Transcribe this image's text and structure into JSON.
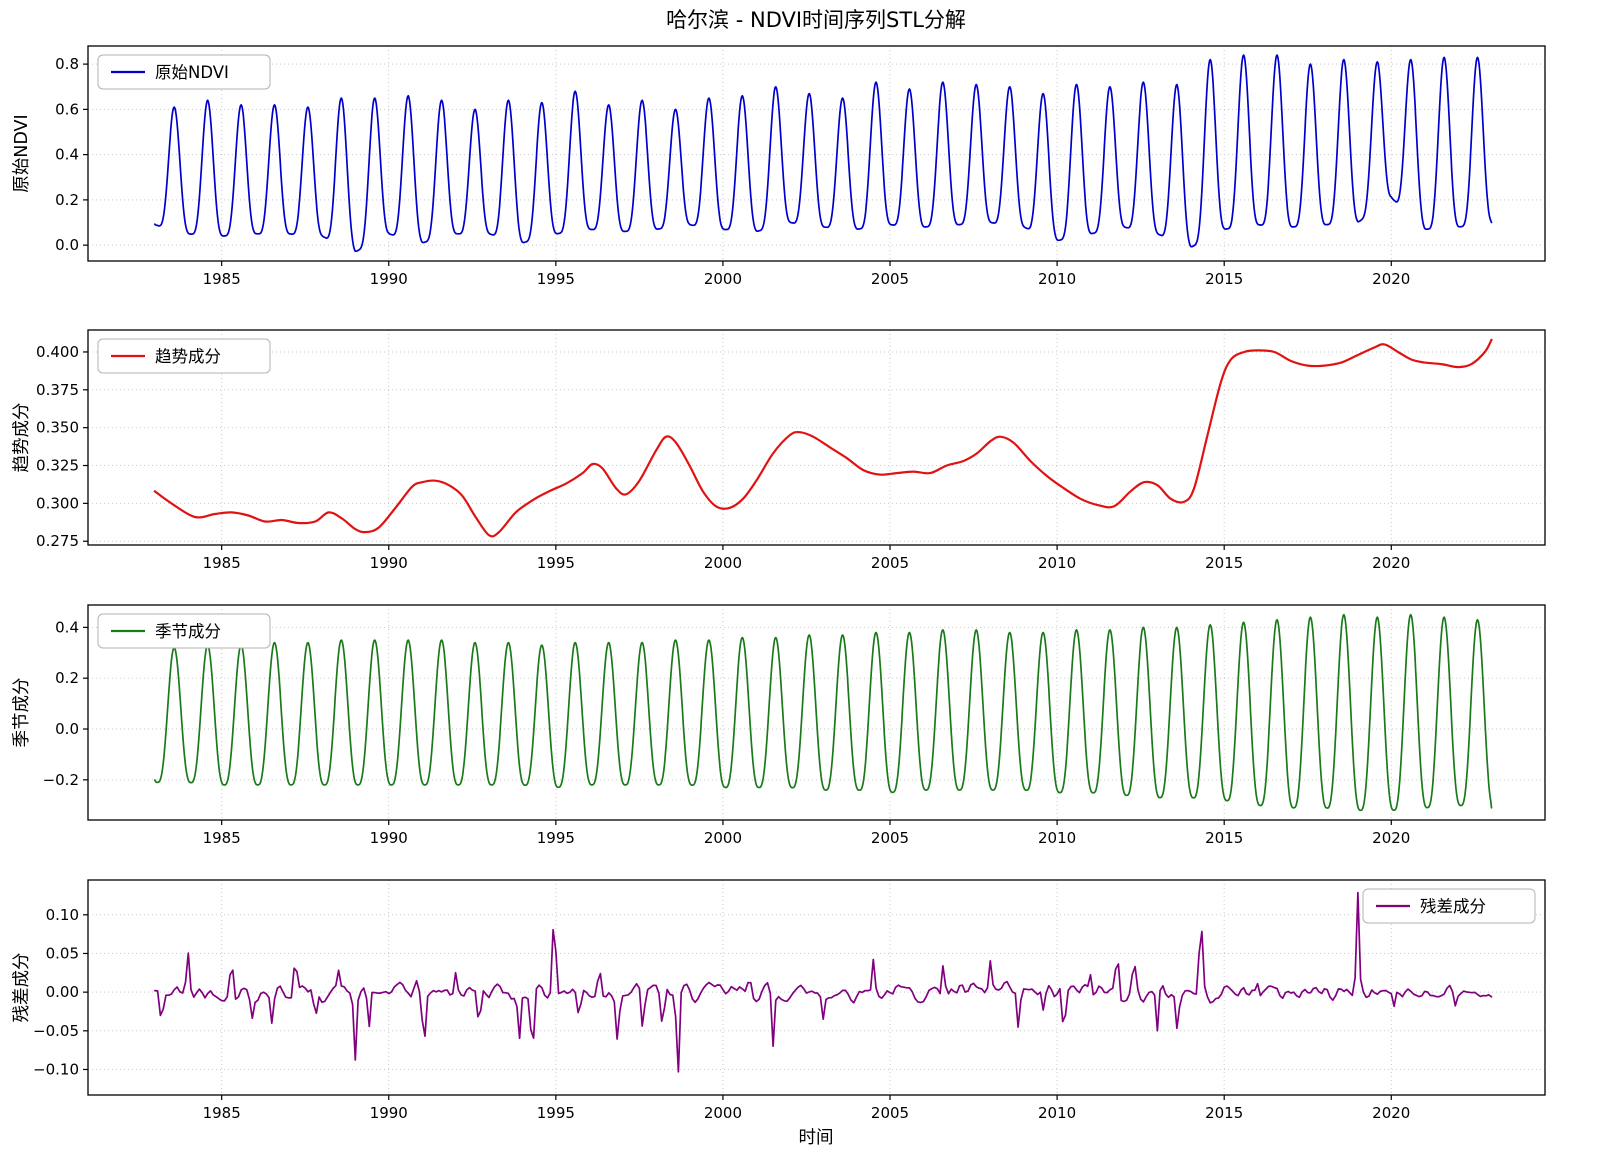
{
  "title": "哈尔滨 - NDVI时间序列STL分解",
  "xlabel": "时间",
  "x_ticks": [
    1985,
    1990,
    1995,
    2000,
    2005,
    2010,
    2015,
    2020
  ],
  "x_range": [
    1981.0,
    2024.6
  ],
  "chart_data": [
    {
      "type": "line",
      "name": "original",
      "legend": "原始NDVI",
      "ylabel": "原始NDVI",
      "color": "#0000cd",
      "legend_pos": "top-left",
      "ylim": [
        -0.07,
        0.88
      ],
      "yticks": [
        0.0,
        0.2,
        0.4,
        0.6,
        0.8
      ],
      "ytick_format": 1,
      "synthesis": {
        "kind": "seasonal",
        "years_start": 1983,
        "phase_trough": 0.08,
        "phase_peak": 0.58,
        "sharpness": 1.9,
        "peaks": [
          0.61,
          0.64,
          0.62,
          0.62,
          0.61,
          0.65,
          0.65,
          0.66,
          0.64,
          0.6,
          0.64,
          0.63,
          0.68,
          0.62,
          0.64,
          0.6,
          0.65,
          0.66,
          0.7,
          0.67,
          0.65,
          0.72,
          0.69,
          0.72,
          0.71,
          0.7,
          0.67,
          0.71,
          0.7,
          0.72,
          0.71,
          0.82,
          0.84,
          0.84,
          0.8,
          0.82,
          0.81,
          0.82,
          0.83,
          0.83
        ],
        "troughs": [
          0.09,
          0.05,
          0.04,
          0.05,
          0.05,
          0.04,
          -0.03,
          0.05,
          0.01,
          0.05,
          0.05,
          0.01,
          0.05,
          0.07,
          0.06,
          0.07,
          0.09,
          0.07,
          0.06,
          0.1,
          0.08,
          0.07,
          0.09,
          0.08,
          0.09,
          0.1,
          0.08,
          0.02,
          0.05,
          0.08,
          0.05,
          -0.01,
          0.07,
          0.09,
          0.08,
          0.09,
          0.1,
          0.21,
          0.07,
          0.08,
          0.1
        ]
      }
    },
    {
      "type": "line",
      "name": "trend",
      "legend": "趋势成分",
      "ylabel": "趋势成分",
      "color": "#e01212",
      "legend_pos": "top-left",
      "ylim": [
        0.2725,
        0.4145
      ],
      "yticks": [
        0.275,
        0.3,
        0.325,
        0.35,
        0.375,
        0.4
      ],
      "ytick_format": 3,
      "points": {
        "x": [
          1983.0,
          1983.5,
          1984.2,
          1984.8,
          1985.3,
          1985.8,
          1986.3,
          1986.8,
          1987.3,
          1987.8,
          1988.2,
          1988.6,
          1989.0,
          1989.3,
          1989.7,
          1990.2,
          1990.7,
          1991.0,
          1991.4,
          1991.8,
          1992.2,
          1992.6,
          1993.0,
          1993.3,
          1993.8,
          1994.3,
          1994.8,
          1995.3,
          1995.8,
          1996.1,
          1996.4,
          1996.8,
          1997.1,
          1997.5,
          1998.0,
          1998.3,
          1998.6,
          1999.0,
          1999.4,
          1999.8,
          2000.2,
          2000.6,
          2001.0,
          2001.5,
          2002.0,
          2002.3,
          2002.7,
          2003.2,
          2003.7,
          2004.2,
          2004.7,
          2005.2,
          2005.7,
          2006.2,
          2006.7,
          2007.2,
          2007.6,
          2008.0,
          2008.3,
          2008.7,
          2009.2,
          2009.7,
          2010.2,
          2010.7,
          2011.2,
          2011.7,
          2012.2,
          2012.6,
          2013.0,
          2013.4,
          2013.8,
          2014.1,
          2014.5,
          2014.9,
          2015.2,
          2015.6,
          2016.0,
          2016.5,
          2017.0,
          2017.5,
          2018.0,
          2018.5,
          2019.0,
          2019.5,
          2019.8,
          2020.2,
          2020.6,
          2021.0,
          2021.5,
          2022.0,
          2022.4,
          2022.8,
          2023.0
        ],
        "y": [
          0.308,
          0.3,
          0.291,
          0.293,
          0.294,
          0.292,
          0.288,
          0.289,
          0.287,
          0.288,
          0.294,
          0.29,
          0.283,
          0.281,
          0.284,
          0.297,
          0.311,
          0.314,
          0.315,
          0.312,
          0.305,
          0.291,
          0.279,
          0.281,
          0.294,
          0.302,
          0.308,
          0.313,
          0.32,
          0.326,
          0.323,
          0.31,
          0.306,
          0.315,
          0.335,
          0.344,
          0.34,
          0.325,
          0.308,
          0.298,
          0.297,
          0.303,
          0.315,
          0.333,
          0.345,
          0.347,
          0.344,
          0.337,
          0.33,
          0.322,
          0.319,
          0.32,
          0.321,
          0.32,
          0.325,
          0.328,
          0.333,
          0.341,
          0.344,
          0.34,
          0.328,
          0.318,
          0.31,
          0.303,
          0.299,
          0.298,
          0.308,
          0.314,
          0.312,
          0.303,
          0.301,
          0.31,
          0.345,
          0.38,
          0.395,
          0.4,
          0.401,
          0.4,
          0.394,
          0.391,
          0.391,
          0.393,
          0.398,
          0.403,
          0.405,
          0.4,
          0.395,
          0.393,
          0.392,
          0.39,
          0.392,
          0.4,
          0.408
        ]
      }
    },
    {
      "type": "line",
      "name": "seasonal",
      "legend": "季节成分",
      "ylabel": "季节成分",
      "color": "#1a7a1a",
      "legend_pos": "top-left",
      "ylim": [
        -0.358,
        0.488
      ],
      "yticks": [
        -0.2,
        0.0,
        0.2,
        0.4
      ],
      "ytick_format": 1,
      "synthesis": {
        "kind": "seasonal",
        "years_start": 1983,
        "phase_trough": 0.08,
        "phase_peak": 0.58,
        "sharpness": 1.45,
        "peaks": [
          0.32,
          0.33,
          0.33,
          0.34,
          0.34,
          0.35,
          0.35,
          0.35,
          0.35,
          0.34,
          0.34,
          0.33,
          0.34,
          0.34,
          0.34,
          0.35,
          0.35,
          0.36,
          0.36,
          0.37,
          0.37,
          0.38,
          0.38,
          0.39,
          0.39,
          0.38,
          0.38,
          0.39,
          0.39,
          0.4,
          0.4,
          0.41,
          0.42,
          0.43,
          0.44,
          0.45,
          0.44,
          0.45,
          0.44,
          0.43
        ],
        "troughs": [
          -0.21,
          -0.21,
          -0.22,
          -0.22,
          -0.22,
          -0.22,
          -0.22,
          -0.22,
          -0.22,
          -0.22,
          -0.22,
          -0.22,
          -0.23,
          -0.22,
          -0.22,
          -0.22,
          -0.22,
          -0.23,
          -0.23,
          -0.23,
          -0.24,
          -0.24,
          -0.25,
          -0.24,
          -0.24,
          -0.24,
          -0.24,
          -0.25,
          -0.25,
          -0.26,
          -0.27,
          -0.27,
          -0.28,
          -0.3,
          -0.31,
          -0.31,
          -0.32,
          -0.32,
          -0.31,
          -0.3,
          -0.31
        ]
      }
    },
    {
      "type": "line",
      "name": "residual",
      "legend": "残差成分",
      "ylabel": "残差成分",
      "color": "#800080",
      "legend_pos": "top-right",
      "ylim": [
        -0.133,
        0.145
      ],
      "yticks": [
        -0.1,
        -0.05,
        0.0,
        0.05,
        0.1
      ],
      "ytick_format": 2,
      "synthesis": {
        "kind": "noise",
        "years_start": 1983,
        "years_end": 2023,
        "seed": 42,
        "amplitude": 0.016,
        "spike_width": 0.06,
        "spikes": [
          [
            1983.2,
            -0.05
          ],
          [
            1984.0,
            0.045
          ],
          [
            1985.3,
            0.04
          ],
          [
            1985.9,
            -0.03
          ],
          [
            1986.5,
            -0.035
          ],
          [
            1987.2,
            0.052
          ],
          [
            1987.8,
            -0.042
          ],
          [
            1988.5,
            0.03
          ],
          [
            1989.0,
            -0.088
          ],
          [
            1989.4,
            -0.055
          ],
          [
            1990.8,
            0.022
          ],
          [
            1991.05,
            -0.085
          ],
          [
            1992.0,
            0.03
          ],
          [
            1992.7,
            -0.04
          ],
          [
            1993.9,
            -0.068
          ],
          [
            1994.3,
            -0.075
          ],
          [
            1994.95,
            0.115
          ],
          [
            1995.7,
            -0.035
          ],
          [
            1996.3,
            0.034
          ],
          [
            1996.85,
            -0.055
          ],
          [
            1997.6,
            -0.046
          ],
          [
            1998.2,
            -0.044
          ],
          [
            1998.65,
            -0.12
          ],
          [
            2000.8,
            0.022
          ],
          [
            2001.5,
            -0.074
          ],
          [
            2003.0,
            -0.032
          ],
          [
            2004.5,
            0.046
          ],
          [
            2006.6,
            0.044
          ],
          [
            2008.0,
            0.036
          ],
          [
            2008.85,
            -0.056
          ],
          [
            2009.6,
            -0.032
          ],
          [
            2010.2,
            -0.054
          ],
          [
            2011.0,
            0.026
          ],
          [
            2011.8,
            0.063
          ],
          [
            2012.3,
            0.032
          ],
          [
            2013.0,
            -0.058
          ],
          [
            2013.6,
            -0.046
          ],
          [
            2014.3,
            0.095
          ],
          [
            2016.0,
            0.02
          ],
          [
            2019.0,
            0.13
          ],
          [
            2020.1,
            -0.028
          ],
          [
            2021.9,
            -0.022
          ]
        ]
      }
    }
  ]
}
